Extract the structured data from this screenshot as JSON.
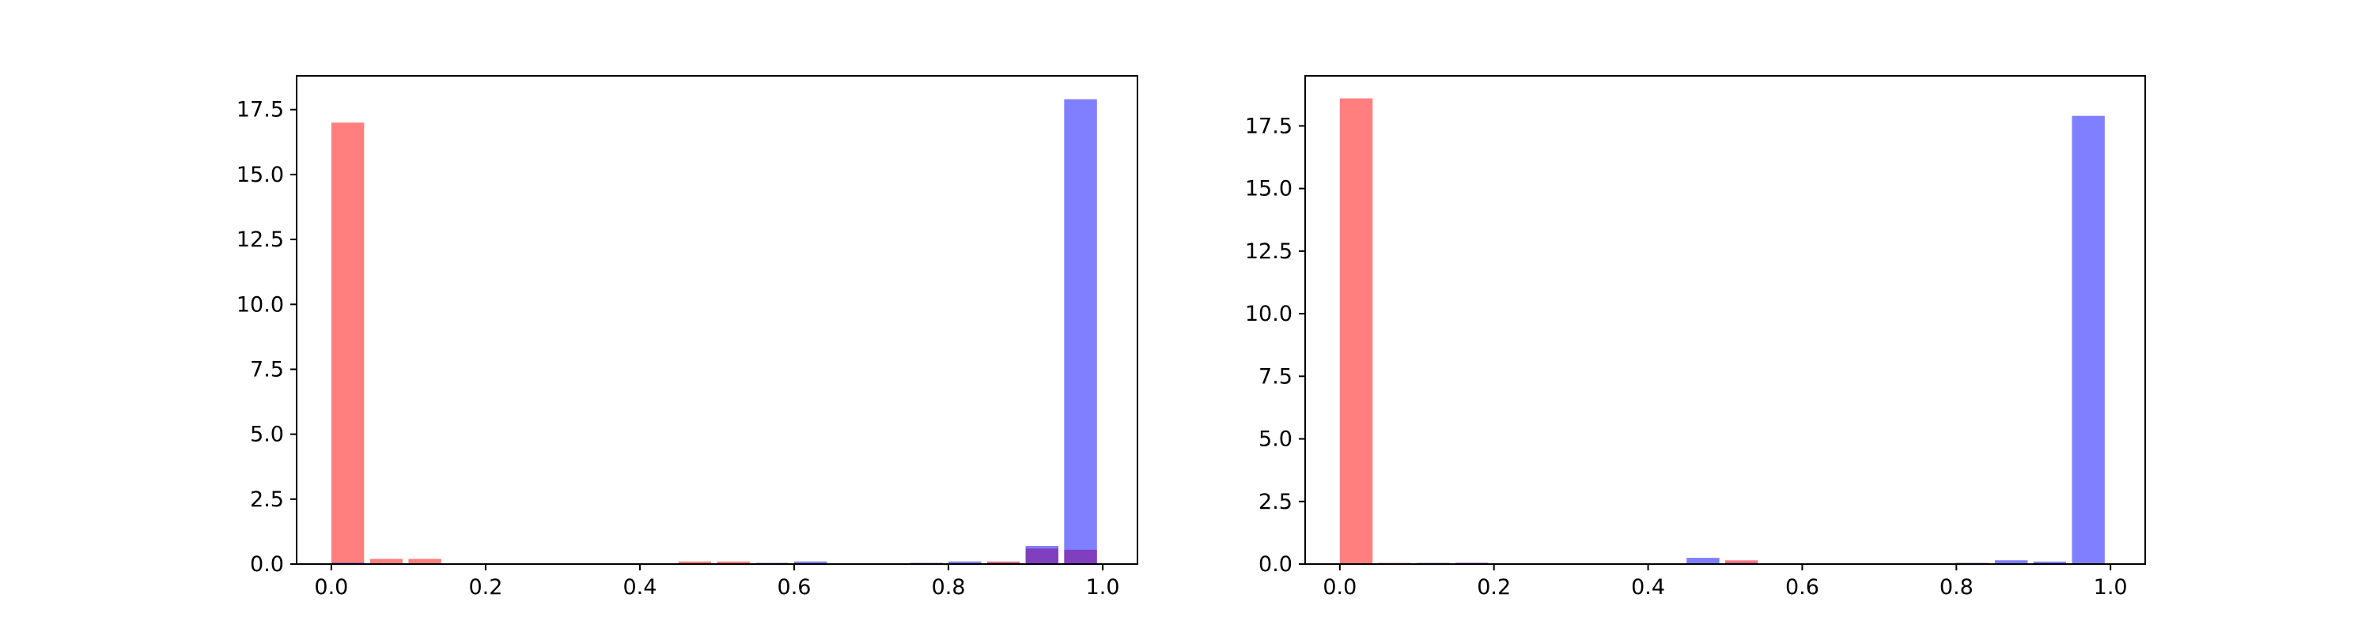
{
  "colors": {
    "red_series": "#ff0000",
    "blue_series": "#0000ff",
    "bar_alpha": 0.5
  },
  "chart_data": [
    {
      "type": "bar",
      "title": "",
      "xlabel": "",
      "ylabel": "",
      "xlim": [
        -0.045,
        1.045
      ],
      "ylim": [
        0,
        18.8
      ],
      "grid": false,
      "legend": "none",
      "xticks": [
        0.0,
        0.2,
        0.4,
        0.6,
        0.8,
        1.0
      ],
      "xtick_labels": [
        "0.0",
        "0.2",
        "0.4",
        "0.6",
        "0.8",
        "1.0"
      ],
      "yticks": [
        0.0,
        2.5,
        5.0,
        7.5,
        10.0,
        12.5,
        15.0,
        17.5
      ],
      "ytick_labels": [
        "0.0",
        "2.5",
        "5.0",
        "7.5",
        "10.0",
        "12.5",
        "15.0",
        "17.5"
      ],
      "bin_width": 0.05,
      "bar_width": 0.0425,
      "x": [
        0.0,
        0.05,
        0.1,
        0.15,
        0.2,
        0.25,
        0.3,
        0.35,
        0.4,
        0.45,
        0.5,
        0.55,
        0.6,
        0.65,
        0.7,
        0.75,
        0.8,
        0.85,
        0.9,
        0.95
      ],
      "series": [
        {
          "color": "red",
          "values": [
            17.0,
            0.2,
            0.2,
            0,
            0,
            0,
            0,
            0,
            0,
            0.1,
            0.1,
            0,
            0,
            0,
            0,
            0,
            0,
            0.1,
            0.6,
            0.55
          ]
        },
        {
          "color": "blue",
          "values": [
            0.05,
            0,
            0,
            0,
            0,
            0,
            0,
            0,
            0,
            0,
            0,
            0.05,
            0.1,
            0,
            0,
            0.05,
            0.1,
            0.05,
            0.7,
            17.9
          ]
        }
      ]
    },
    {
      "type": "bar",
      "title": "",
      "xlabel": "",
      "ylabel": "",
      "xlim": [
        -0.045,
        1.045
      ],
      "ylim": [
        0,
        19.5
      ],
      "grid": false,
      "legend": "none",
      "xticks": [
        0.0,
        0.2,
        0.4,
        0.6,
        0.8,
        1.0
      ],
      "xtick_labels": [
        "0.0",
        "0.2",
        "0.4",
        "0.6",
        "0.8",
        "1.0"
      ],
      "yticks": [
        0.0,
        2.5,
        5.0,
        7.5,
        10.0,
        12.5,
        15.0,
        17.5
      ],
      "ytick_labels": [
        "0.0",
        "2.5",
        "5.0",
        "7.5",
        "10.0",
        "12.5",
        "15.0",
        "17.5"
      ],
      "bin_width": 0.05,
      "bar_width": 0.0425,
      "x": [
        0.0,
        0.05,
        0.1,
        0.15,
        0.2,
        0.25,
        0.3,
        0.35,
        0.4,
        0.45,
        0.5,
        0.55,
        0.6,
        0.65,
        0.7,
        0.75,
        0.8,
        0.85,
        0.9,
        0.95
      ],
      "series": [
        {
          "color": "red",
          "values": [
            18.6,
            0.05,
            0,
            0.05,
            0,
            0,
            0,
            0,
            0,
            0,
            0.15,
            0,
            0,
            0,
            0,
            0,
            0,
            0,
            0,
            0
          ]
        },
        {
          "color": "blue",
          "values": [
            0,
            0,
            0.05,
            0.05,
            0,
            0,
            0,
            0,
            0,
            0.25,
            0.05,
            0,
            0,
            0,
            0,
            0,
            0.05,
            0.15,
            0.1,
            17.9
          ]
        }
      ]
    }
  ]
}
